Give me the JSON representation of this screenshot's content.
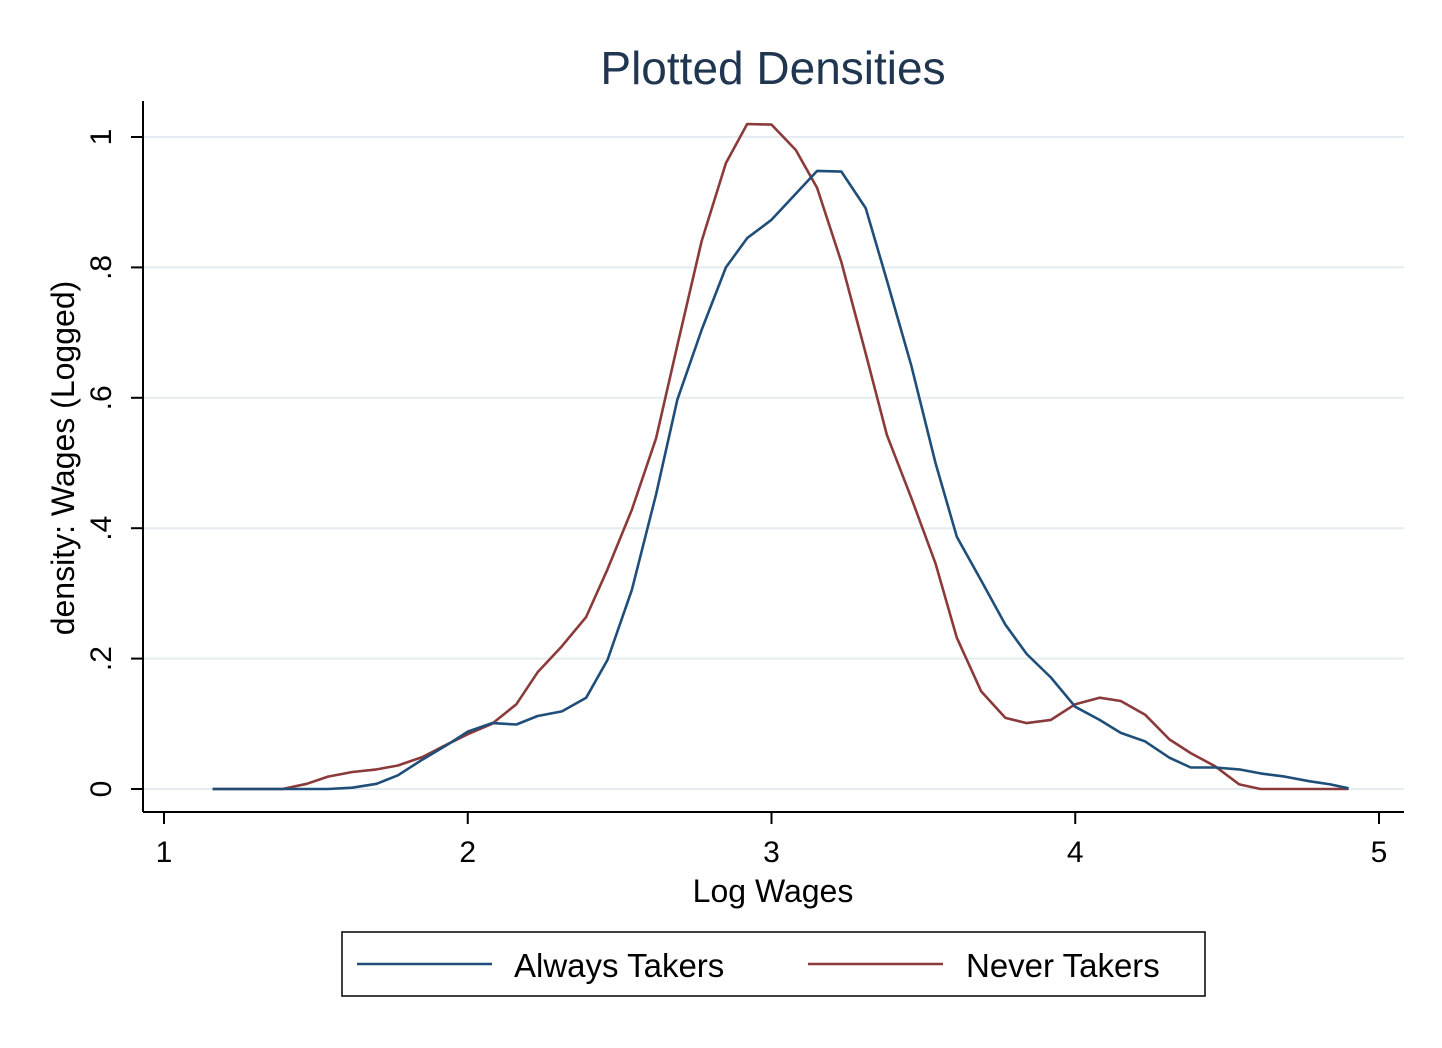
{
  "chart_data": {
    "type": "line",
    "title": "Plotted Densities",
    "xlabel": "Log Wages",
    "ylabel": "density: Wages (Logged)",
    "xlim": [
      1,
      5
    ],
    "ylim": [
      0,
      1
    ],
    "xticks": [
      {
        "value": 1,
        "label": "1"
      },
      {
        "value": 2,
        "label": "2"
      },
      {
        "value": 3,
        "label": "3"
      },
      {
        "value": 4,
        "label": "4"
      },
      {
        "value": 5,
        "label": "5"
      }
    ],
    "yticks": [
      {
        "value": 0,
        "label": "0"
      },
      {
        "value": 0.2,
        "label": ".2"
      },
      {
        "value": 0.4,
        "label": ".4"
      },
      {
        "value": 0.6,
        "label": ".6"
      },
      {
        "value": 0.8,
        "label": ".8"
      },
      {
        "value": 1,
        "label": "1"
      }
    ],
    "grid": "horizontal",
    "legend_position": "bottom",
    "series": [
      {
        "name": "Always Takers",
        "color": "#1f4e79",
        "x": [
          1.16,
          1.24,
          1.31,
          1.39,
          1.47,
          1.54,
          1.62,
          1.7,
          1.77,
          1.85,
          1.93,
          2.0,
          2.08,
          2.16,
          2.23,
          2.31,
          2.39,
          2.46,
          2.54,
          2.62,
          2.69,
          2.77,
          2.85,
          2.92,
          3.0,
          3.08,
          3.15,
          3.23,
          3.31,
          3.38,
          3.46,
          3.54,
          3.61,
          3.69,
          3.77,
          3.84,
          3.92,
          4.0,
          4.08,
          4.15,
          4.23,
          4.31,
          4.38,
          4.46,
          4.54,
          4.61,
          4.69,
          4.77,
          4.84,
          4.9
        ],
        "y": [
          0,
          0,
          0,
          0,
          0,
          0,
          0.002,
          0.008,
          0.021,
          0.045,
          0.067,
          0.088,
          0.101,
          0.099,
          0.112,
          0.119,
          0.14,
          0.198,
          0.305,
          0.452,
          0.597,
          0.704,
          0.8,
          0.845,
          0.873,
          0.913,
          0.948,
          0.947,
          0.891,
          0.78,
          0.65,
          0.5,
          0.387,
          0.32,
          0.252,
          0.207,
          0.171,
          0.126,
          0.106,
          0.086,
          0.073,
          0.048,
          0.033,
          0.033,
          0.03,
          0.024,
          0.019,
          0.012,
          0.007,
          0.001
        ]
      },
      {
        "name": "Never Takers",
        "color": "#8b3a3a",
        "x": [
          1.16,
          1.24,
          1.31,
          1.39,
          1.47,
          1.54,
          1.62,
          1.7,
          1.77,
          1.85,
          1.93,
          2.0,
          2.08,
          2.16,
          2.23,
          2.31,
          2.39,
          2.46,
          2.54,
          2.62,
          2.69,
          2.77,
          2.85,
          2.92,
          3.0,
          3.08,
          3.15,
          3.23,
          3.31,
          3.38,
          3.46,
          3.54,
          3.61,
          3.69,
          3.77,
          3.84,
          3.92,
          4.0,
          4.08,
          4.15,
          4.23,
          4.31,
          4.38,
          4.46,
          4.54,
          4.61,
          4.69,
          4.77,
          4.84,
          4.9
        ],
        "y": [
          0,
          0,
          0,
          0,
          0.008,
          0.019,
          0.026,
          0.03,
          0.036,
          0.049,
          0.068,
          0.084,
          0.1,
          0.13,
          0.179,
          0.219,
          0.264,
          0.337,
          0.428,
          0.538,
          0.68,
          0.84,
          0.96,
          1.02,
          1.019,
          0.98,
          0.922,
          0.808,
          0.668,
          0.543,
          0.447,
          0.346,
          0.232,
          0.15,
          0.109,
          0.101,
          0.106,
          0.13,
          0.14,
          0.135,
          0.114,
          0.076,
          0.055,
          0.035,
          0.007,
          0,
          0,
          0,
          0,
          0
        ]
      }
    ]
  }
}
